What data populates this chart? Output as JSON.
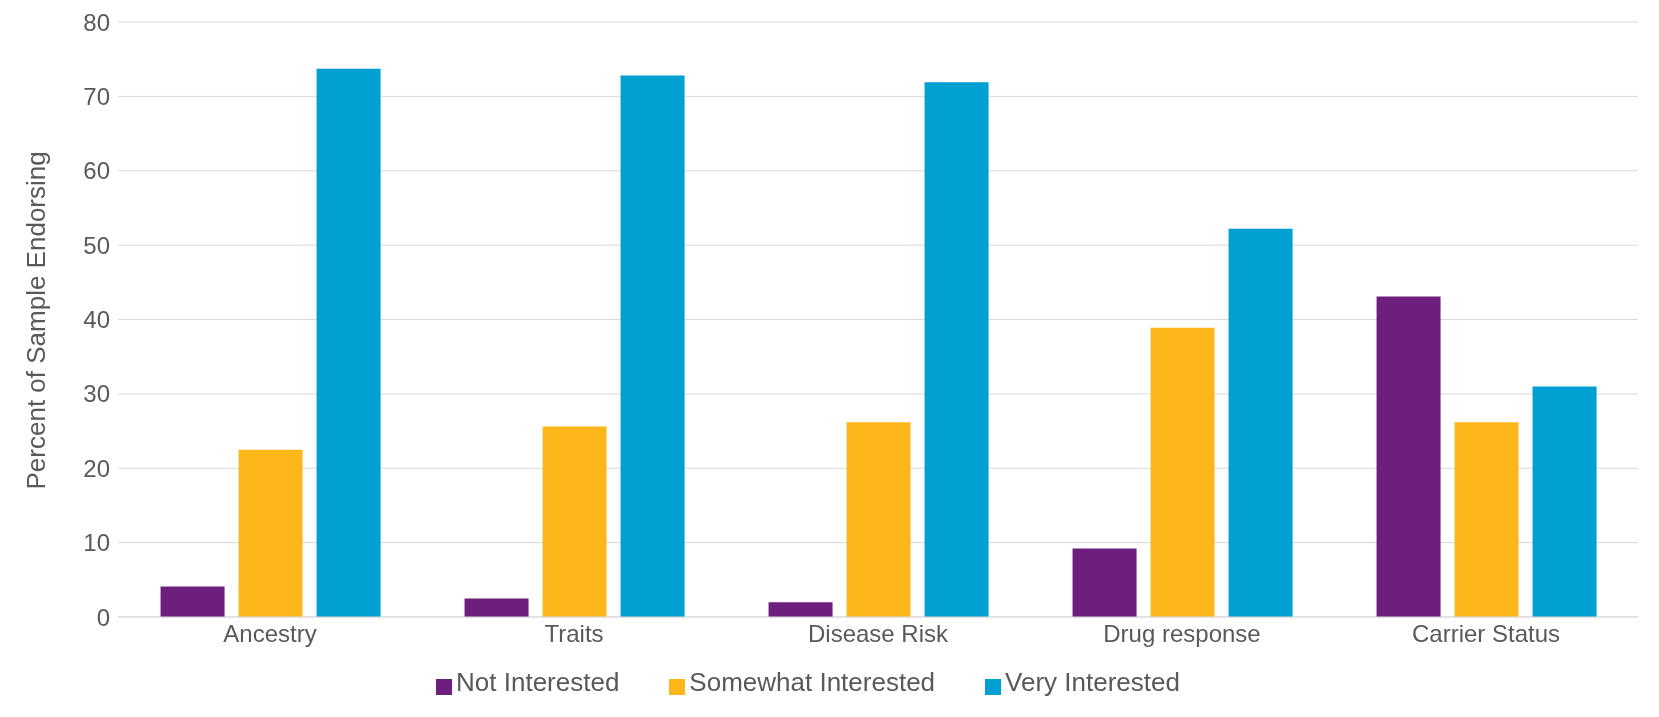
{
  "chart_data": {
    "type": "bar",
    "ylabel": "Percent of Sample Endorsing",
    "categories": [
      "Ancestry",
      "Traits",
      "Disease Risk",
      "Drug response",
      "Carrier Status"
    ],
    "series": [
      {
        "name": "Not Interested",
        "color": "#6d1f7e",
        "values": [
          4.1,
          2.5,
          2.0,
          9.2,
          43.1
        ]
      },
      {
        "name": "Somewhat Interested",
        "color": "#fdb71a",
        "values": [
          22.5,
          25.6,
          26.2,
          38.9,
          26.2
        ]
      },
      {
        "name": "Very Interested",
        "color": "#00a0d2",
        "values": [
          73.7,
          72.8,
          71.9,
          52.2,
          31.0
        ]
      }
    ],
    "ylim": [
      0,
      80
    ],
    "yticks": [
      0,
      10,
      20,
      30,
      40,
      50,
      60,
      70,
      80
    ],
    "grid": "y",
    "legend": "bottom"
  }
}
